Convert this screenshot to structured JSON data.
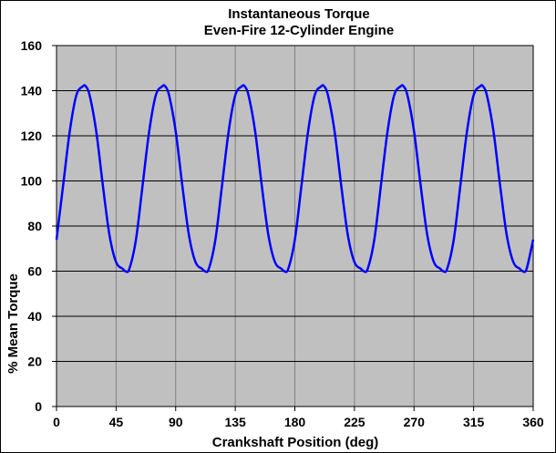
{
  "chart_data": {
    "type": "line",
    "title": "Instantaneous Torque",
    "subtitle": "Even-Fire 12-Cylinder Engine",
    "xlabel": "Crankshaft Position (deg)",
    "ylabel": "% Mean Torque",
    "xlim": [
      0,
      360
    ],
    "ylim": [
      0,
      160
    ],
    "xticks": [
      "0",
      "45",
      "90",
      "135",
      "180",
      "225",
      "270",
      "315",
      "360"
    ],
    "yticks": [
      "0",
      "20",
      "40",
      "60",
      "80",
      "100",
      "120",
      "140",
      "160"
    ],
    "grid": true,
    "legend": "none",
    "colors": {
      "plot_background": "#c0c0c0",
      "line": "#0000ff",
      "grid": "#000000"
    },
    "series": [
      {
        "x": [
          0,
          5,
          10,
          15,
          20,
          22,
          25,
          30,
          35,
          40,
          45,
          50,
          52,
          55,
          60,
          65,
          70,
          75,
          80,
          82,
          85,
          90,
          95,
          100,
          105,
          110,
          112,
          115,
          120,
          125,
          130,
          135,
          140,
          142,
          145,
          150,
          155,
          160,
          165,
          170,
          172,
          175,
          180,
          185,
          190,
          195,
          200,
          202,
          205,
          210,
          215,
          220,
          225,
          230,
          232,
          235,
          240,
          245,
          250,
          255,
          260,
          262,
          265,
          270,
          275,
          280,
          285,
          290,
          292,
          295,
          300,
          305,
          310,
          315,
          320,
          322,
          325,
          330,
          335,
          340,
          345,
          350,
          352,
          355,
          360
        ],
        "y": [
          74,
          98,
          122,
          138,
          142,
          142,
          138,
          122,
          98,
          76,
          64,
          61,
          60,
          61,
          74,
          98,
          122,
          138,
          142,
          142,
          138,
          122,
          98,
          76,
          64,
          61,
          60,
          61,
          74,
          98,
          122,
          138,
          142,
          142,
          138,
          122,
          98,
          76,
          64,
          61,
          60,
          61,
          74,
          98,
          122,
          138,
          142,
          142,
          138,
          122,
          98,
          76,
          64,
          61,
          60,
          61,
          74,
          98,
          122,
          138,
          142,
          142,
          138,
          122,
          98,
          76,
          64,
          61,
          60,
          61,
          74,
          98,
          122,
          138,
          142,
          142,
          138,
          122,
          98,
          76,
          64,
          61,
          60,
          61,
          74
        ]
      }
    ]
  }
}
